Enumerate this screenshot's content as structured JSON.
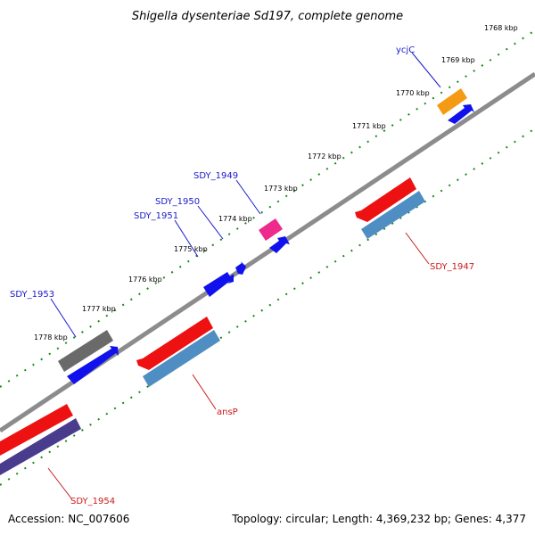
{
  "title": "Shigella dysenteriae Sd197, complete genome",
  "footer": {
    "accession": "Accession: NC_007606",
    "summary": "Topology: circular; Length: 4,369,232 bp; Genes: 4,377"
  },
  "colors": {
    "backbone": "#8c8c8c",
    "tick": "#1a8a1a",
    "forward_label": "#1a1acc",
    "reverse_label": "#cc1a1a",
    "gene_red": "#ee1111",
    "cds_blue": "#1111ee",
    "cds_steel": "#4f8ec2",
    "gene_gray": "#6a6a6a",
    "gene_orange": "#f59a14",
    "gene_pink": "#ee2a8c",
    "cds_purple": "#4a3c8c"
  },
  "kbp_ticks": [
    {
      "label": "1768 kbp"
    },
    {
      "label": "1769 kbp"
    },
    {
      "label": "1770 kbp"
    },
    {
      "label": "1771 kbp"
    },
    {
      "label": "1772 kbp"
    },
    {
      "label": "1773 kbp"
    },
    {
      "label": "1774 kbp"
    },
    {
      "label": "1775 kbp"
    },
    {
      "label": "1776 kbp"
    },
    {
      "label": "1777 kbp"
    },
    {
      "label": "1778 kbp"
    }
  ],
  "genes": [
    {
      "name": "ycjC",
      "strand": "forward"
    },
    {
      "name": "SDY_1949",
      "strand": "forward"
    },
    {
      "name": "SDY_1950",
      "strand": "forward"
    },
    {
      "name": "SDY_1951",
      "strand": "forward"
    },
    {
      "name": "SDY_1953",
      "strand": "forward"
    },
    {
      "name": "SDY_1947",
      "strand": "reverse"
    },
    {
      "name": "ansP",
      "strand": "reverse"
    },
    {
      "name": "SDY_1954",
      "strand": "reverse"
    }
  ]
}
